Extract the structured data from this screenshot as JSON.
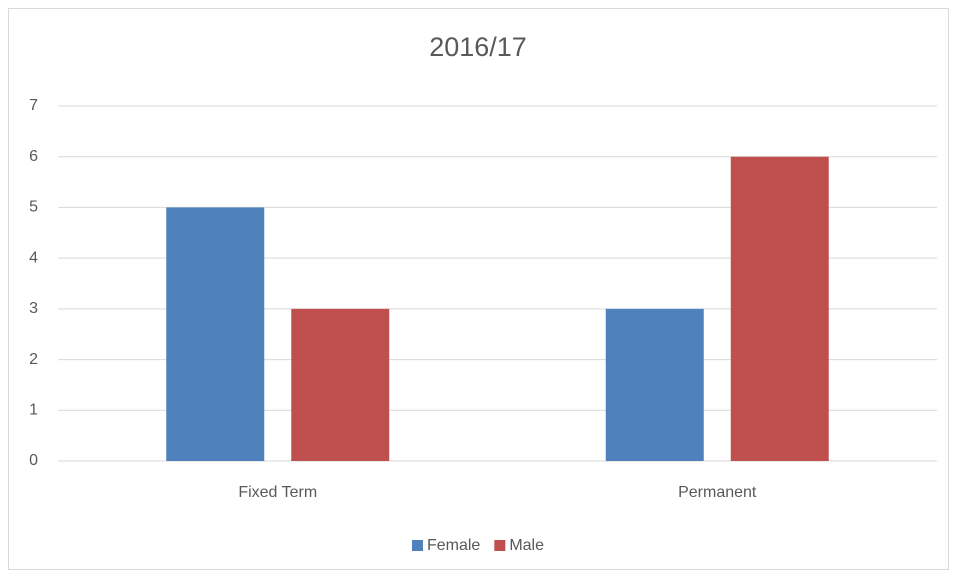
{
  "chart_data": {
    "type": "bar",
    "title": "2016/17",
    "categories": [
      "Fixed Term",
      "Permanent"
    ],
    "series": [
      {
        "name": "Female",
        "color": "#4f81bd",
        "values": [
          5,
          3
        ]
      },
      {
        "name": "Male",
        "color": "#c0504d",
        "values": [
          3,
          6
        ]
      }
    ],
    "ylim": [
      0,
      7
    ],
    "yticks": [
      0,
      1,
      2,
      3,
      4,
      5,
      6,
      7
    ],
    "grid": true,
    "legend": "bottom"
  }
}
